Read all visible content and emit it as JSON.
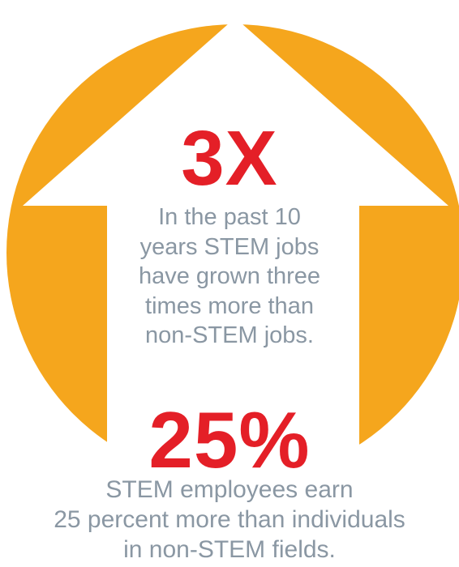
{
  "colors": {
    "orange_circle": "#f5a61d",
    "arrow_white": "#ffffff",
    "stat_red": "#e41f27",
    "body_gray": "#8a97a3"
  },
  "graphic": {
    "circle_icon": "orange-circle",
    "arrow_icon": "up-arrow"
  },
  "stats": [
    {
      "value": "3X",
      "lines": [
        "In the past 10",
        "years STEM jobs",
        "have grown three",
        "times more than",
        "non-STEM jobs."
      ]
    },
    {
      "value": "25%",
      "lines": [
        "STEM employees earn",
        "25 percent more than individuals",
        "in non-STEM fields."
      ]
    }
  ]
}
